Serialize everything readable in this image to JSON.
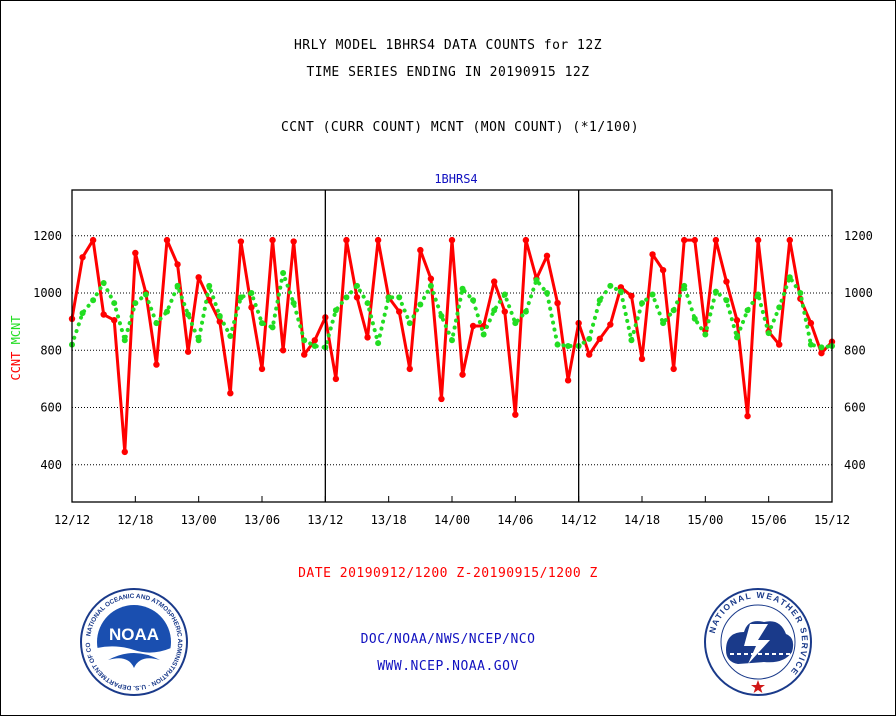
{
  "header": {
    "title_line1": "HRLY MODEL 1BHRS4 DATA COUNTS for 12Z",
    "title_line2": "TIME SERIES ENDING IN 20190915 12Z",
    "subtitle": "CCNT (CURR COUNT) MCNT (MON COUNT) (*1/100)"
  },
  "footer": {
    "date_range": "DATE 20190912/1200 Z-20190915/1200 Z",
    "credit_line1": "DOC/NOAA/NWS/NCEP/NCO",
    "credit_line2": "WWW.NCEP.NOAA.GOV"
  },
  "logos": {
    "left": {
      "name": "NOAA",
      "ring_text": "NATIONAL OCEANIC AND ATMOSPHERIC ADMINISTRATION · U.S. DEPARTMENT OF COMMERCE"
    },
    "right": {
      "ring_text": "NATIONAL WEATHER SERVICE"
    }
  },
  "colors": {
    "ccnt": "#ff0000",
    "mcnt": "#22dd22",
    "axis": "#000000",
    "footer_text": "#ff0000",
    "credit_text": "#1010c0",
    "series_label": "#1010c0"
  },
  "chart_data": {
    "type": "line",
    "series_label": "1BHRS4",
    "ylabel_parts": [
      {
        "text": "CCNT",
        "color": "#ff0000"
      },
      {
        "text": "MCNT",
        "color": "#22dd22"
      }
    ],
    "xlabel": "DATE 20190912/1200 Z-20190915/1200 Z",
    "x_ticks": [
      "12/12",
      "12/18",
      "13/00",
      "13/06",
      "13/12",
      "13/18",
      "14/00",
      "14/06",
      "14/12",
      "14/18",
      "15/00",
      "15/06",
      "15/12"
    ],
    "y_ticks": [
      400,
      600,
      800,
      1000,
      1200
    ],
    "ylim": [
      270,
      1360
    ],
    "xlim": [
      0,
      72
    ],
    "grid": "dotted horizontal at y ticks",
    "day_separators_at_hours": [
      24,
      48
    ],
    "series": [
      {
        "name": "CCNT",
        "style": "solid",
        "values": [
          910,
          1125,
          1185,
          925,
          905,
          445,
          1140,
          1000,
          750,
          1185,
          1100,
          795,
          1055,
          975,
          900,
          650,
          1180,
          950,
          735,
          1185,
          800,
          1180,
          785,
          835,
          915,
          700,
          1185,
          985,
          845,
          1185,
          985,
          935,
          735,
          1150,
          1050,
          630,
          1185,
          715,
          885,
          885,
          1040,
          935,
          575,
          1185,
          1050,
          1130,
          965,
          695,
          895,
          785,
          840,
          890,
          1020,
          990,
          770,
          1135,
          1080,
          735,
          1185,
          1185,
          870,
          1185,
          1040,
          905,
          570,
          1185,
          865,
          820,
          1185,
          980,
          895,
          790,
          830
        ]
      },
      {
        "name": "MCNT",
        "style": "dotted",
        "values": [
          820,
          930,
          975,
          1035,
          965,
          835,
          965,
          995,
          895,
          935,
          1025,
          925,
          835,
          1025,
          920,
          850,
          985,
          1000,
          895,
          880,
          1070,
          965,
          835,
          815,
          810,
          940,
          985,
          1025,
          965,
          825,
          985,
          985,
          895,
          960,
          1025,
          920,
          835,
          1015,
          975,
          855,
          940,
          995,
          895,
          935,
          1045,
          1000,
          820,
          815,
          815,
          840,
          975,
          1025,
          1005,
          835,
          965,
          995,
          895,
          940,
          1025,
          910,
          855,
          1005,
          975,
          845,
          940,
          995,
          860,
          950,
          1055,
          1000,
          820,
          810,
          815
        ]
      }
    ]
  }
}
